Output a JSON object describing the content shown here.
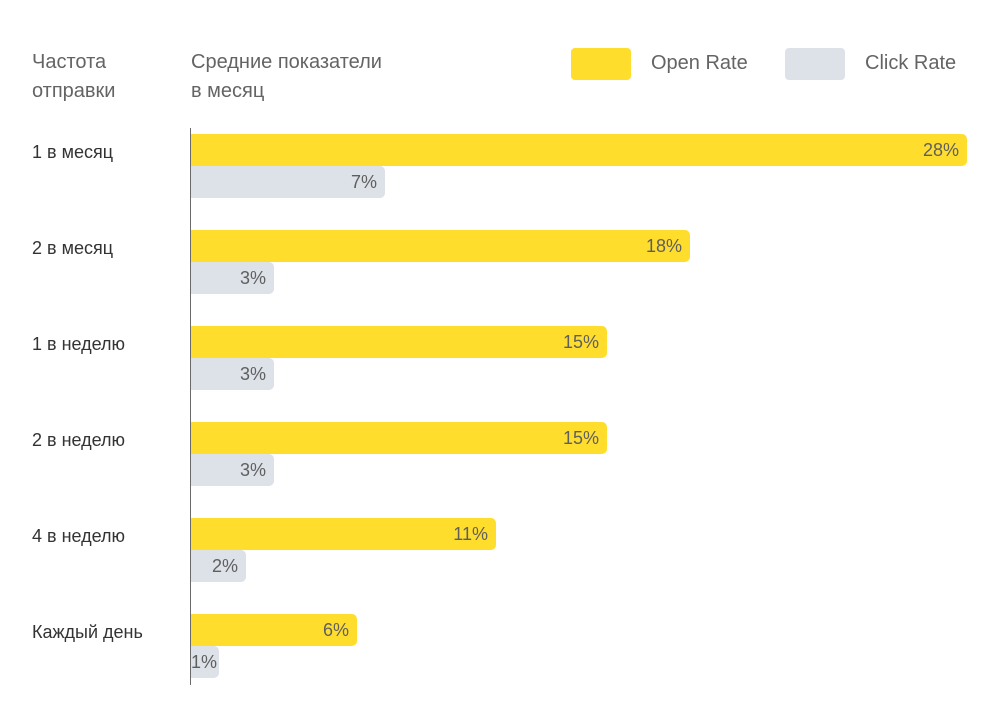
{
  "header": {
    "category_title_line1": "Частота",
    "category_title_line2": "отправки",
    "value_title_line1": "Средние показатели",
    "value_title_line2": "в месяц"
  },
  "legend": [
    {
      "label": "Open Rate",
      "color": "#FFDD2D"
    },
    {
      "label": "Click Rate",
      "color": "#DDE1E8"
    }
  ],
  "chart_data": {
    "type": "bar",
    "orientation": "horizontal",
    "title": "",
    "xlabel": "Средние показатели в месяц",
    "ylabel": "Частота отправки",
    "categories": [
      "1 в месяц",
      "2 в месяц",
      "1 в неделю",
      "2 в неделю",
      "4 в неделю",
      "Каждый день"
    ],
    "series": [
      {
        "name": "Open Rate",
        "color": "#FFDD2D",
        "values": [
          28,
          18,
          15,
          15,
          11,
          6
        ],
        "labels": [
          "28%",
          "18%",
          "15%",
          "15%",
          "11%",
          "6%"
        ]
      },
      {
        "name": "Click Rate",
        "color": "#DDE1E8",
        "values": [
          7,
          3,
          3,
          3,
          2,
          1
        ],
        "labels": [
          "7%",
          "3%",
          "3%",
          "3%",
          "2%",
          "1%"
        ]
      }
    ],
    "unit": "%",
    "grid": false,
    "legend_position": "top-right"
  }
}
